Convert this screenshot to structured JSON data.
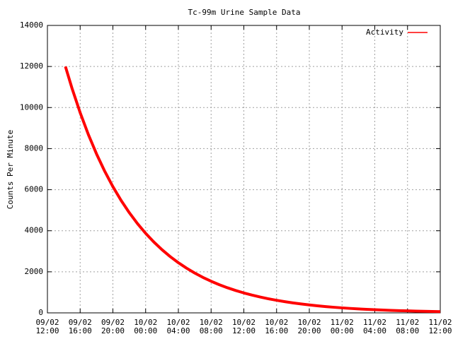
{
  "chart_data": {
    "type": "line",
    "title": "Tc-99m Urine Sample Data",
    "y_label": "Counts Per Minute",
    "x": [
      2.2,
      3,
      4,
      5,
      6,
      7,
      8,
      9,
      10,
      11,
      12,
      13,
      14,
      15,
      16,
      17,
      18,
      19,
      20,
      21,
      22,
      23,
      24,
      25,
      26,
      27,
      28,
      29,
      30,
      31,
      32,
      33,
      34,
      35,
      36,
      37,
      38,
      39,
      40,
      41,
      42,
      43,
      44,
      45,
      46,
      47,
      48
    ],
    "series": [
      {
        "name": "Activity",
        "color": "#ff0000",
        "values": [
          12000,
          10943,
          9750,
          8688,
          7741,
          6898,
          6147,
          5477,
          4881,
          4349,
          3875,
          3453,
          3077,
          2742,
          2443,
          2177,
          1940,
          1728,
          1540,
          1372,
          1223,
          1090,
          971,
          865,
          771,
          687,
          612,
          546,
          486,
          433,
          386,
          344,
          306,
          273,
          243,
          217,
          193,
          172,
          153,
          137,
          122,
          108,
          97,
          86,
          77,
          68,
          61
        ]
      }
    ],
    "xlim": [
      0,
      48
    ],
    "xticks": [
      {
        "value": 0,
        "label": "09/02\n12:00"
      },
      {
        "value": 4,
        "label": "09/02\n16:00"
      },
      {
        "value": 8,
        "label": "09/02\n20:00"
      },
      {
        "value": 12,
        "label": "10/02\n00:00"
      },
      {
        "value": 16,
        "label": "10/02\n04:00"
      },
      {
        "value": 20,
        "label": "10/02\n08:00"
      },
      {
        "value": 24,
        "label": "10/02\n12:00"
      },
      {
        "value": 28,
        "label": "10/02\n16:00"
      },
      {
        "value": 32,
        "label": "10/02\n20:00"
      },
      {
        "value": 36,
        "label": "11/02\n00:00"
      },
      {
        "value": 40,
        "label": "11/02\n04:00"
      },
      {
        "value": 44,
        "label": "11/02\n08:00"
      },
      {
        "value": 48,
        "label": "11/02\n12:00"
      }
    ],
    "ylim": [
      0,
      14000
    ],
    "yticks": [
      0,
      2000,
      4000,
      6000,
      8000,
      10000,
      12000,
      14000
    ],
    "grid": true,
    "legend": "top right"
  }
}
